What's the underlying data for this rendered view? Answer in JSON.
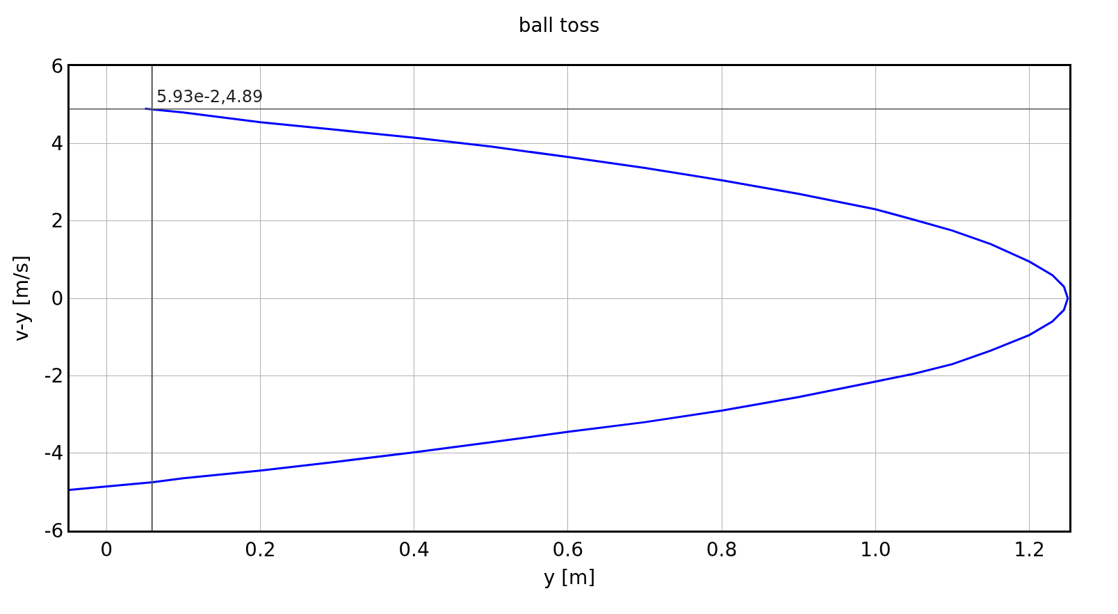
{
  "chart_data": {
    "type": "line",
    "title": "ball toss",
    "xlabel": "y [m]",
    "ylabel": "v-y [m/s]",
    "series": [
      {
        "color": "#0000ff",
        "x": [
          0.05,
          0.1,
          0.2,
          0.3,
          0.4,
          0.5,
          0.6,
          0.7,
          0.8,
          0.9,
          1.0,
          1.05,
          1.1,
          1.15,
          1.2,
          1.23,
          1.245,
          1.25,
          1.245,
          1.23,
          1.2,
          1.15,
          1.1,
          1.05,
          1.0,
          0.9,
          0.8,
          0.7,
          0.6,
          0.5,
          0.4,
          0.3,
          0.2,
          0.1,
          0.06,
          -0.048
        ],
        "values": [
          4.9,
          4.8,
          4.55,
          4.35,
          4.15,
          3.92,
          3.65,
          3.37,
          3.05,
          2.7,
          2.3,
          2.03,
          1.75,
          1.4,
          0.95,
          0.6,
          0.3,
          0,
          -0.3,
          -0.6,
          -0.95,
          -1.35,
          -1.7,
          -1.95,
          -2.15,
          -2.55,
          -2.9,
          -3.2,
          -3.45,
          -3.72,
          -3.98,
          -4.22,
          -4.45,
          -4.65,
          -4.75,
          -4.95
        ]
      }
    ],
    "xlim": [
      -0.048,
      1.252
    ],
    "xticks": [
      0,
      0.2,
      0.4,
      0.6,
      0.8,
      {
        "value": 1.0,
        "label": "1.0"
      },
      1.2
    ],
    "ylim": [
      -6,
      6
    ],
    "yticks": [
      -6,
      -4,
      -2,
      0,
      2,
      4,
      6
    ],
    "ref_lines": [
      {
        "axis": "x",
        "value": 0.0593,
        "color": "#555555"
      },
      {
        "axis": "y",
        "value": 4.89,
        "color": "#555555"
      }
    ],
    "annotations": [
      {
        "text": "5.93e-2,4.89",
        "x": 0.0593,
        "y": 4.89
      }
    ],
    "grid": true,
    "marker": "none",
    "line_style": "solid"
  }
}
